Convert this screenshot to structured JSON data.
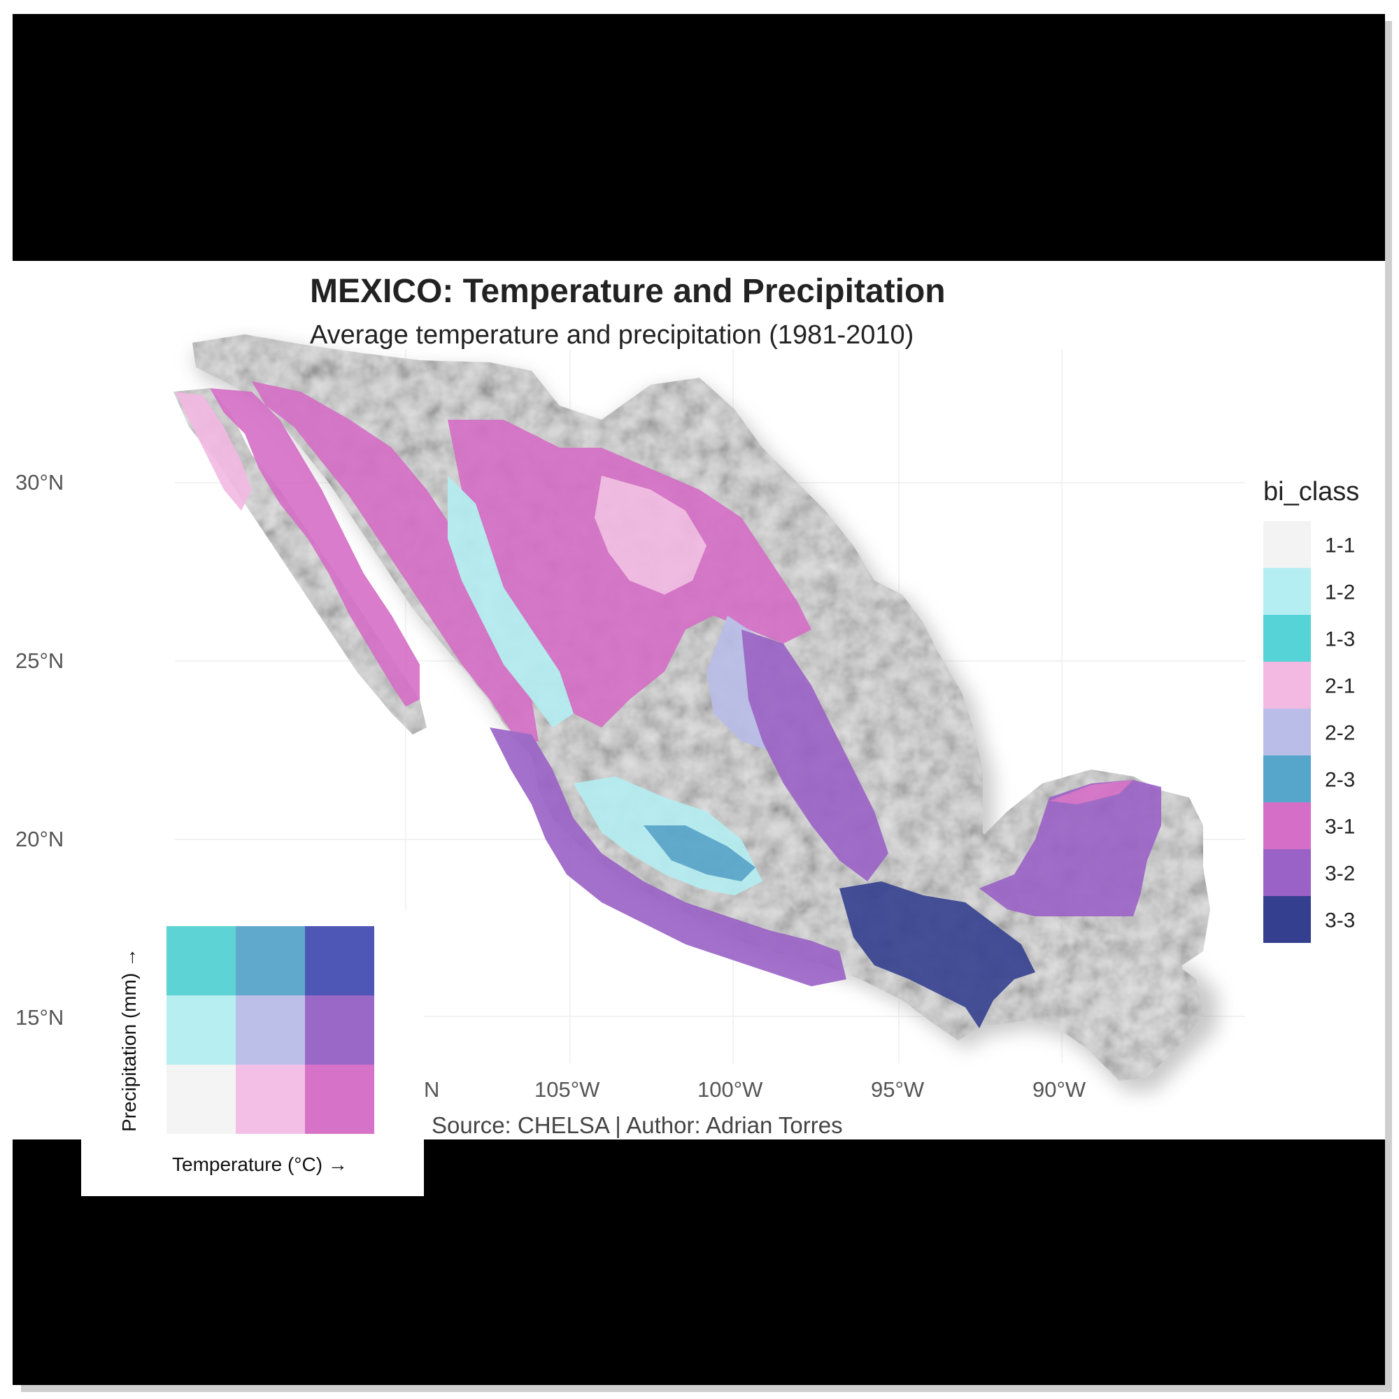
{
  "map": {
    "title": "MEXICO: Temperature and Precipitation",
    "subtitle": "Average temperature and precipitation (1981-2010)",
    "caption": "Source: CHELSA | Author: Adrian Torres",
    "lat_ticks": [
      "30°N",
      "25°N",
      "20°N",
      "15°N"
    ],
    "lon_ticks": [
      "N",
      "105°W",
      "100°W",
      "95°W",
      "90°W"
    ],
    "colors": {
      "background": "#ffffff",
      "bars": "#000000",
      "hillshade": "#d9d9d9"
    }
  },
  "legend": {
    "title": "bi_class",
    "items": [
      {
        "label": "1-1",
        "color": "#f3f3f3"
      },
      {
        "label": "1-2",
        "color": "#b4eef2"
      },
      {
        "label": "1-3",
        "color": "#55d3d6"
      },
      {
        "label": "2-1",
        "color": "#f3b9e3"
      },
      {
        "label": "2-2",
        "color": "#b9bde8"
      },
      {
        "label": "2-3",
        "color": "#56a6cc"
      },
      {
        "label": "3-1",
        "color": "#d56ec6"
      },
      {
        "label": "3-2",
        "color": "#9a62c6"
      },
      {
        "label": "3-3",
        "color": "#34408f"
      }
    ]
  },
  "bivariate_key": {
    "x_label": "Temperature (°C) →",
    "y_label": "Precipitation (mm) →",
    "grid": [
      [
        "#5ed3d6",
        "#61a9cc",
        "#4e57b5"
      ],
      [
        "#b7eef1",
        "#bcbfe8",
        "#9a68c7"
      ],
      [
        "#f4f4f4",
        "#f3bfe6",
        "#d672c7"
      ]
    ]
  }
}
